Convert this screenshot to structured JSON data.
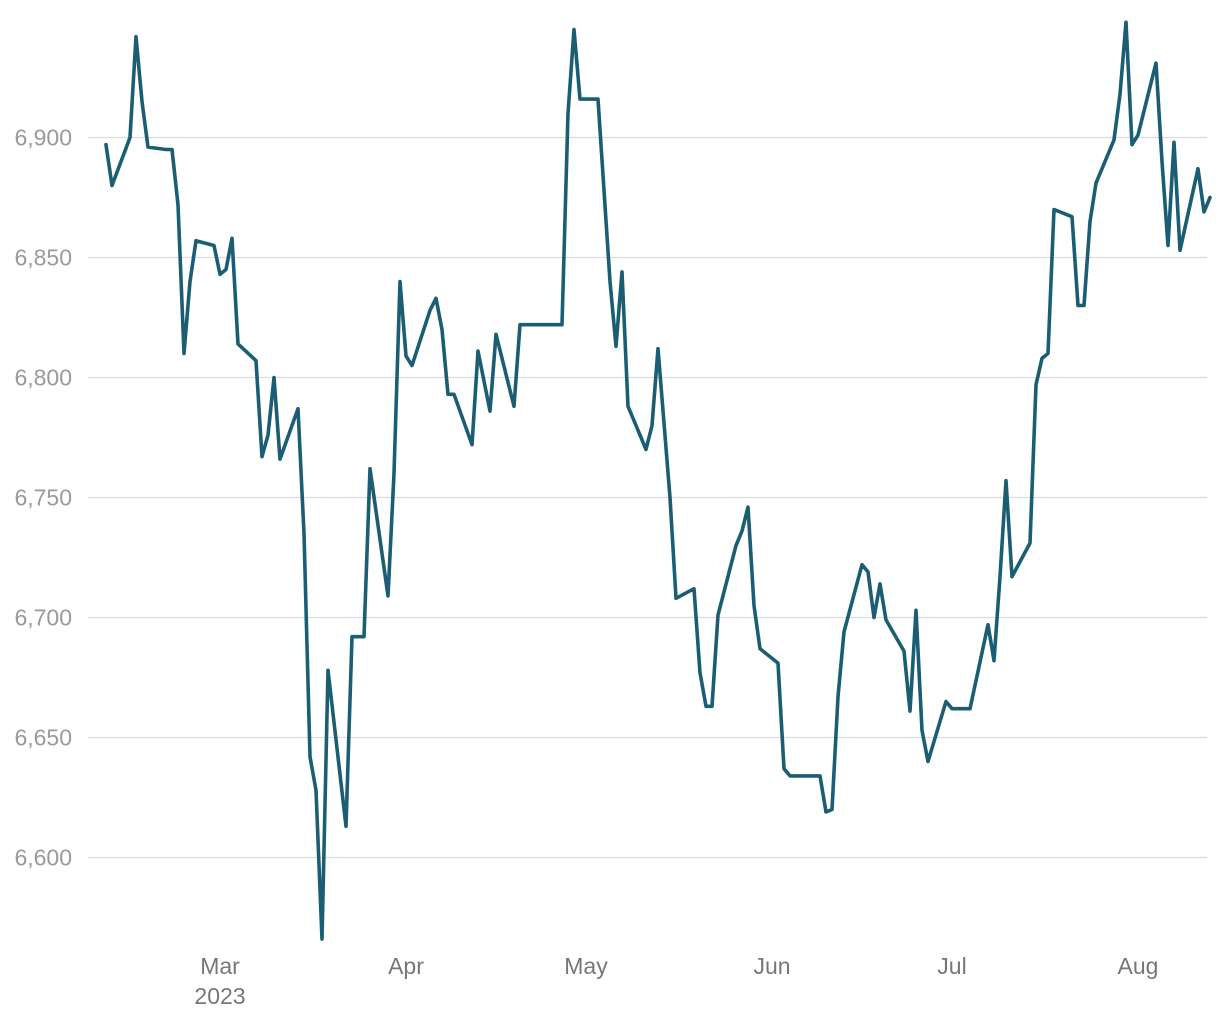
{
  "chart_data": {
    "type": "line",
    "title": "",
    "xlabel": "",
    "ylabel": "",
    "colors": {
      "line": "#1b5e73",
      "grid": "#dcdcdc"
    },
    "grid": "horizontal",
    "legend": "none",
    "ylim": [
      6565,
      6950
    ],
    "y_ticks": [
      {
        "value": 6600,
        "label": "6,600"
      },
      {
        "value": 6650,
        "label": "6,650"
      },
      {
        "value": 6700,
        "label": "6,700"
      },
      {
        "value": 6750,
        "label": "6,750"
      },
      {
        "value": 6800,
        "label": "6,800"
      },
      {
        "value": 6850,
        "label": "6,850"
      },
      {
        "value": 6900,
        "label": "6,900"
      }
    ],
    "xlim": [
      "2023-02-08",
      "2023-08-15"
    ],
    "x_ticks": [
      {
        "date": "2023-03-01",
        "label": "Mar",
        "sublabel": "2023"
      },
      {
        "date": "2023-04-01",
        "label": "Apr",
        "sublabel": ""
      },
      {
        "date": "2023-05-01",
        "label": "May",
        "sublabel": ""
      },
      {
        "date": "2023-06-01",
        "label": "Jun",
        "sublabel": ""
      },
      {
        "date": "2023-07-01",
        "label": "Jul",
        "sublabel": ""
      },
      {
        "date": "2023-08-01",
        "label": "Aug",
        "sublabel": ""
      }
    ],
    "series": [
      {
        "points": [
          [
            "2023-02-10",
            6897
          ],
          [
            "2023-02-11",
            6880
          ],
          [
            "2023-02-14",
            6900
          ],
          [
            "2023-02-15",
            6942
          ],
          [
            "2023-02-16",
            6915
          ],
          [
            "2023-02-17",
            6896
          ],
          [
            "2023-02-20",
            6895
          ],
          [
            "2023-02-21",
            6895
          ],
          [
            "2023-02-22",
            6872
          ],
          [
            "2023-02-23",
            6810
          ],
          [
            "2023-02-24",
            6840
          ],
          [
            "2023-02-25",
            6857
          ],
          [
            "2023-02-28",
            6855
          ],
          [
            "2023-03-01",
            6843
          ],
          [
            "2023-03-02",
            6845
          ],
          [
            "2023-03-03",
            6858
          ],
          [
            "2023-03-04",
            6814
          ],
          [
            "2023-03-07",
            6807
          ],
          [
            "2023-03-08",
            6767
          ],
          [
            "2023-03-09",
            6776
          ],
          [
            "2023-03-10",
            6800
          ],
          [
            "2023-03-11",
            6766
          ],
          [
            "2023-03-14",
            6787
          ],
          [
            "2023-03-15",
            6735
          ],
          [
            "2023-03-16",
            6642
          ],
          [
            "2023-03-17",
            6628
          ],
          [
            "2023-03-18",
            6566
          ],
          [
            "2023-03-19",
            6678
          ],
          [
            "2023-03-22",
            6613
          ],
          [
            "2023-03-23",
            6692
          ],
          [
            "2023-03-25",
            6692
          ],
          [
            "2023-03-26",
            6762
          ],
          [
            "2023-03-29",
            6709
          ],
          [
            "2023-03-30",
            6760
          ],
          [
            "2023-03-31",
            6840
          ],
          [
            "2023-04-01",
            6809
          ],
          [
            "2023-04-02",
            6805
          ],
          [
            "2023-04-05",
            6828
          ],
          [
            "2023-04-06",
            6833
          ],
          [
            "2023-04-07",
            6820
          ],
          [
            "2023-04-08",
            6793
          ],
          [
            "2023-04-09",
            6793
          ],
          [
            "2023-04-12",
            6772
          ],
          [
            "2023-04-13",
            6811
          ],
          [
            "2023-04-15",
            6786
          ],
          [
            "2023-04-16",
            6818
          ],
          [
            "2023-04-19",
            6788
          ],
          [
            "2023-04-20",
            6822
          ],
          [
            "2023-04-27",
            6822
          ],
          [
            "2023-04-28",
            6910
          ],
          [
            "2023-04-29",
            6945
          ],
          [
            "2023-04-30",
            6916
          ],
          [
            "2023-05-03",
            6916
          ],
          [
            "2023-05-05",
            6840
          ],
          [
            "2023-05-06",
            6813
          ],
          [
            "2023-05-07",
            6844
          ],
          [
            "2023-05-08",
            6788
          ],
          [
            "2023-05-11",
            6770
          ],
          [
            "2023-05-12",
            6780
          ],
          [
            "2023-05-13",
            6812
          ],
          [
            "2023-05-15",
            6750
          ],
          [
            "2023-05-16",
            6708
          ],
          [
            "2023-05-19",
            6712
          ],
          [
            "2023-05-20",
            6677
          ],
          [
            "2023-05-21",
            6663
          ],
          [
            "2023-05-22",
            6663
          ],
          [
            "2023-05-23",
            6701
          ],
          [
            "2023-05-26",
            6730
          ],
          [
            "2023-05-27",
            6736
          ],
          [
            "2023-05-28",
            6746
          ],
          [
            "2023-05-29",
            6705
          ],
          [
            "2023-05-30",
            6687
          ],
          [
            "2023-06-02",
            6681
          ],
          [
            "2023-06-03",
            6637
          ],
          [
            "2023-06-04",
            6634
          ],
          [
            "2023-06-09",
            6634
          ],
          [
            "2023-06-10",
            6619
          ],
          [
            "2023-06-11",
            6620
          ],
          [
            "2023-06-12",
            6667
          ],
          [
            "2023-06-13",
            6694
          ],
          [
            "2023-06-16",
            6722
          ],
          [
            "2023-06-17",
            6719
          ],
          [
            "2023-06-18",
            6700
          ],
          [
            "2023-06-19",
            6714
          ],
          [
            "2023-06-20",
            6699
          ],
          [
            "2023-06-23",
            6686
          ],
          [
            "2023-06-24",
            6661
          ],
          [
            "2023-06-25",
            6703
          ],
          [
            "2023-06-26",
            6653
          ],
          [
            "2023-06-27",
            6640
          ],
          [
            "2023-06-30",
            6665
          ],
          [
            "2023-07-01",
            6662
          ],
          [
            "2023-07-04",
            6662
          ],
          [
            "2023-07-07",
            6697
          ],
          [
            "2023-07-08",
            6682
          ],
          [
            "2023-07-09",
            6717
          ],
          [
            "2023-07-10",
            6757
          ],
          [
            "2023-07-11",
            6717
          ],
          [
            "2023-07-14",
            6731
          ],
          [
            "2023-07-15",
            6797
          ],
          [
            "2023-07-16",
            6808
          ],
          [
            "2023-07-17",
            6810
          ],
          [
            "2023-07-18",
            6870
          ],
          [
            "2023-07-21",
            6867
          ],
          [
            "2023-07-22",
            6830
          ],
          [
            "2023-07-23",
            6830
          ],
          [
            "2023-07-24",
            6865
          ],
          [
            "2023-07-25",
            6881
          ],
          [
            "2023-07-28",
            6899
          ],
          [
            "2023-07-29",
            6918
          ],
          [
            "2023-07-30",
            6948
          ],
          [
            "2023-07-31",
            6897
          ],
          [
            "2023-08-01",
            6901
          ],
          [
            "2023-08-04",
            6931
          ],
          [
            "2023-08-05",
            6890
          ],
          [
            "2023-08-06",
            6855
          ],
          [
            "2023-08-07",
            6898
          ],
          [
            "2023-08-08",
            6853
          ],
          [
            "2023-08-11",
            6887
          ],
          [
            "2023-08-12",
            6869
          ],
          [
            "2023-08-13",
            6875
          ]
        ]
      }
    ]
  }
}
